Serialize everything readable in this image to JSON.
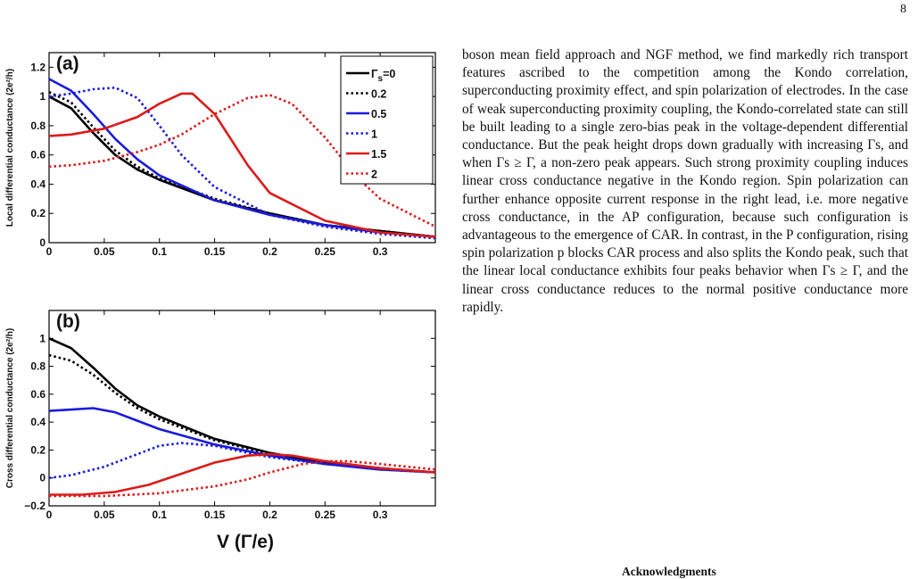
{
  "page": {
    "number": "8"
  },
  "body": {
    "paragraph": "boson mean field approach and NGF method, we find markedly rich transport features ascribed to the competition among the Kondo correlation, superconducting proximity effect, and spin polarization of electrodes. In the case of weak superconducting proximity coupling, the Kondo-correlated state can still be built leading to a single zero-bias peak in the voltage-dependent differential conductance. But the peak height drops down gradually with increasing Γs, and when Γs ≥ Γ, a non-zero peak appears. Such strong proximity coupling induces linear cross conductance negative in the Kondo region. Spin polarization can further enhance opposite current response in the right lead, i.e. more negative cross conductance, in the AP configuration, because such configuration is advantageous to the emergence of CAR. In contrast, in the P configuration, rising spin polarization p blocks CAR process and also splits the Kondo peak, such that the linear local conductance exhibits four peaks behavior when Γs ≥ Γ, and the linear cross conductance reduces to the normal positive conductance more rapidly.",
    "acknowledgments_heading": "Acknowledgments"
  },
  "figure": {
    "xlabel": "V (Γ/e)",
    "legend_prefix": "Γ",
    "legend_sub": "s",
    "legend_first_suffix": "=0"
  },
  "chart_data": [
    {
      "type": "line",
      "panel_label": "(a)",
      "ylabel": "Local differential conductance (2e²/h)",
      "xlim": [
        0,
        0.35
      ],
      "ylim": [
        0,
        1.3
      ],
      "x_ticks": [
        "0",
        "0.05",
        "0.1",
        "0.15",
        "0.2",
        "0.25",
        "0.3"
      ],
      "y_ticks": [
        "0",
        "0.2",
        "0.4",
        "0.6",
        "0.8",
        "1",
        "1.2"
      ],
      "legend_position": "top-right",
      "series": [
        {
          "name": "0",
          "color": "#000000",
          "dash": "solid",
          "x": [
            0,
            0.02,
            0.04,
            0.06,
            0.08,
            0.1,
            0.15,
            0.2,
            0.25,
            0.3,
            0.35
          ],
          "y": [
            1.0,
            0.92,
            0.75,
            0.6,
            0.5,
            0.43,
            0.29,
            0.2,
            0.12,
            0.08,
            0.04
          ]
        },
        {
          "name": "0.2",
          "color": "#000000",
          "dash": "dotted",
          "x": [
            0,
            0.02,
            0.04,
            0.06,
            0.08,
            0.1,
            0.15,
            0.2,
            0.25,
            0.3,
            0.35
          ],
          "y": [
            1.03,
            0.96,
            0.79,
            0.63,
            0.52,
            0.44,
            0.3,
            0.2,
            0.12,
            0.08,
            0.04
          ]
        },
        {
          "name": "0.5",
          "color": "#1a1adc",
          "dash": "solid",
          "x": [
            0,
            0.02,
            0.04,
            0.06,
            0.08,
            0.1,
            0.15,
            0.2,
            0.25,
            0.3,
            0.35
          ],
          "y": [
            1.12,
            1.04,
            0.88,
            0.71,
            0.57,
            0.46,
            0.29,
            0.19,
            0.12,
            0.07,
            0.04
          ]
        },
        {
          "name": "1",
          "color": "#1a1adc",
          "dash": "dotted",
          "x": [
            0,
            0.02,
            0.04,
            0.06,
            0.08,
            0.1,
            0.12,
            0.15,
            0.2,
            0.25,
            0.3,
            0.35
          ],
          "y": [
            1.0,
            1.02,
            1.05,
            1.06,
            0.99,
            0.8,
            0.6,
            0.38,
            0.19,
            0.11,
            0.06,
            0.03
          ]
        },
        {
          "name": "1.5",
          "color": "#dc1a1a",
          "dash": "solid",
          "x": [
            0,
            0.02,
            0.05,
            0.08,
            0.1,
            0.12,
            0.13,
            0.15,
            0.18,
            0.2,
            0.25,
            0.3,
            0.35
          ],
          "y": [
            0.73,
            0.74,
            0.78,
            0.86,
            0.95,
            1.02,
            1.02,
            0.88,
            0.53,
            0.34,
            0.15,
            0.07,
            0.04
          ]
        },
        {
          "name": "2",
          "color": "#dc1a1a",
          "dash": "dotted",
          "x": [
            0,
            0.02,
            0.05,
            0.08,
            0.1,
            0.12,
            0.15,
            0.18,
            0.2,
            0.22,
            0.25,
            0.28,
            0.3,
            0.35
          ],
          "y": [
            0.52,
            0.53,
            0.56,
            0.62,
            0.67,
            0.74,
            0.88,
            0.99,
            1.01,
            0.95,
            0.72,
            0.44,
            0.3,
            0.11
          ]
        }
      ]
    },
    {
      "type": "line",
      "panel_label": "(b)",
      "ylabel": "Cross differential conductance (2e²/h)",
      "xlim": [
        0,
        0.35
      ],
      "ylim": [
        -0.2,
        1.2
      ],
      "x_ticks": [
        "0",
        "0.05",
        "0.1",
        "0.15",
        "0.2",
        "0.25",
        "0.3"
      ],
      "y_ticks": [
        "−0.2",
        "0",
        "0.2",
        "0.4",
        "0.6",
        "0.8",
        "1"
      ],
      "series": [
        {
          "name": "0",
          "color": "#000000",
          "dash": "solid",
          "x": [
            0,
            0.02,
            0.04,
            0.06,
            0.08,
            0.1,
            0.15,
            0.2,
            0.25,
            0.3,
            0.35
          ],
          "y": [
            1.0,
            0.93,
            0.79,
            0.64,
            0.52,
            0.44,
            0.28,
            0.18,
            0.11,
            0.07,
            0.04
          ]
        },
        {
          "name": "0.2",
          "color": "#000000",
          "dash": "dotted",
          "x": [
            0,
            0.02,
            0.04,
            0.06,
            0.08,
            0.1,
            0.15,
            0.2,
            0.25,
            0.3,
            0.35
          ],
          "y": [
            0.88,
            0.84,
            0.74,
            0.61,
            0.5,
            0.42,
            0.27,
            0.17,
            0.11,
            0.07,
            0.04
          ]
        },
        {
          "name": "0.5",
          "color": "#1a1adc",
          "dash": "solid",
          "x": [
            0,
            0.02,
            0.04,
            0.06,
            0.08,
            0.1,
            0.15,
            0.2,
            0.25,
            0.3,
            0.35
          ],
          "y": [
            0.48,
            0.49,
            0.5,
            0.47,
            0.41,
            0.35,
            0.24,
            0.16,
            0.1,
            0.06,
            0.04
          ]
        },
        {
          "name": "1",
          "color": "#1a1adc",
          "dash": "dotted",
          "x": [
            0,
            0.02,
            0.05,
            0.08,
            0.1,
            0.12,
            0.15,
            0.18,
            0.2,
            0.25,
            0.3,
            0.35
          ],
          "y": [
            0.0,
            0.02,
            0.08,
            0.17,
            0.23,
            0.25,
            0.23,
            0.18,
            0.15,
            0.1,
            0.06,
            0.04
          ]
        },
        {
          "name": "1.5",
          "color": "#dc1a1a",
          "dash": "solid",
          "x": [
            0,
            0.03,
            0.06,
            0.09,
            0.12,
            0.15,
            0.18,
            0.2,
            0.22,
            0.25,
            0.3,
            0.35
          ],
          "y": [
            -0.12,
            -0.12,
            -0.1,
            -0.05,
            0.03,
            0.11,
            0.16,
            0.17,
            0.16,
            0.12,
            0.07,
            0.04
          ]
        },
        {
          "name": "2",
          "color": "#dc1a1a",
          "dash": "dotted",
          "x": [
            0,
            0.05,
            0.1,
            0.15,
            0.18,
            0.2,
            0.23,
            0.25,
            0.27,
            0.3,
            0.35
          ],
          "y": [
            -0.13,
            -0.13,
            -0.11,
            -0.06,
            -0.01,
            0.04,
            0.1,
            0.12,
            0.12,
            0.1,
            0.06
          ]
        }
      ]
    }
  ]
}
